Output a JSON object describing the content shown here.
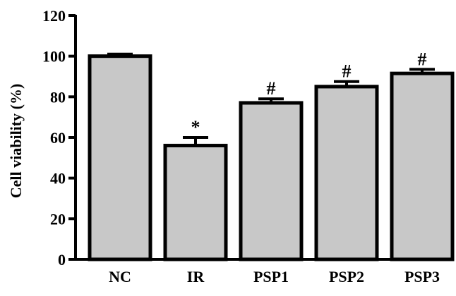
{
  "chart_data": {
    "type": "bar",
    "categories": [
      "NC",
      "IR",
      "PSP1",
      "PSP2",
      "PSP3"
    ],
    "values": [
      100,
      56,
      77,
      85,
      91.5
    ],
    "errors": [
      1,
      4,
      2,
      2.5,
      2
    ],
    "annotations": [
      "",
      "*",
      "#",
      "#",
      "#"
    ],
    "xlabel": "",
    "ylabel": "Cell viability (%)",
    "ylim": [
      0,
      120
    ],
    "yticks": [
      0,
      20,
      40,
      60,
      80,
      100,
      120
    ],
    "grid": false,
    "bar_color": "#c8c8c8",
    "edge_color": "#000000"
  }
}
